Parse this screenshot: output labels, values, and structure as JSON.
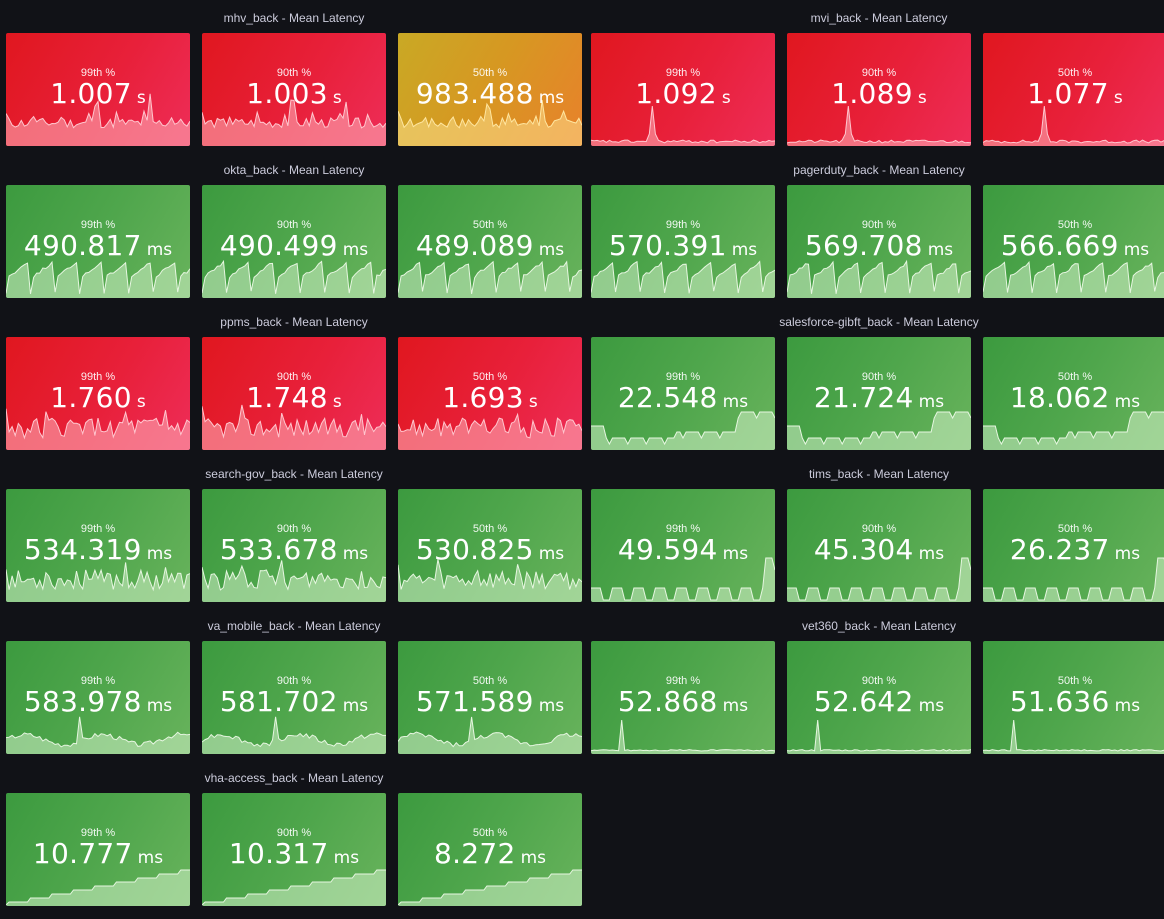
{
  "colors": {
    "background": "#111217",
    "title": "#ccccdc",
    "red": "#e02f44",
    "yellow": "#d79722",
    "green": "#56a64b"
  },
  "groups": [
    {
      "title": "mhv_back - Mean Latency",
      "panels": [
        {
          "label": "99th %",
          "value": "1.007",
          "unit": "s",
          "color": "red",
          "spark": "spiky"
        },
        {
          "label": "90th %",
          "value": "1.003",
          "unit": "s",
          "color": "red",
          "spark": "spiky"
        },
        {
          "label": "50th %",
          "value": "983.488",
          "unit": "ms",
          "color": "yellow",
          "spark": "spiky"
        }
      ]
    },
    {
      "title": "mvi_back - Mean Latency",
      "panels": [
        {
          "label": "99th %",
          "value": "1.092",
          "unit": "s",
          "color": "red",
          "spark": "single"
        },
        {
          "label": "90th %",
          "value": "1.089",
          "unit": "s",
          "color": "red",
          "spark": "single"
        },
        {
          "label": "50th %",
          "value": "1.077",
          "unit": "s",
          "color": "red",
          "spark": "single"
        }
      ]
    },
    {
      "title": "okta_back - Mean Latency",
      "panels": [
        {
          "label": "99th %",
          "value": "490.817",
          "unit": "ms",
          "color": "green",
          "spark": "sawtooth"
        },
        {
          "label": "90th %",
          "value": "490.499",
          "unit": "ms",
          "color": "green",
          "spark": "sawtooth"
        },
        {
          "label": "50th %",
          "value": "489.089",
          "unit": "ms",
          "color": "green",
          "spark": "sawtooth"
        }
      ]
    },
    {
      "title": "pagerduty_back - Mean Latency",
      "panels": [
        {
          "label": "99th %",
          "value": "570.391",
          "unit": "ms",
          "color": "green",
          "spark": "sawtooth"
        },
        {
          "label": "90th %",
          "value": "569.708",
          "unit": "ms",
          "color": "green",
          "spark": "sawtooth"
        },
        {
          "label": "50th %",
          "value": "566.669",
          "unit": "ms",
          "color": "green",
          "spark": "sawtooth"
        }
      ]
    },
    {
      "title": "ppms_back - Mean Latency",
      "panels": [
        {
          "label": "99th %",
          "value": "1.760",
          "unit": "s",
          "color": "red",
          "spark": "noisy"
        },
        {
          "label": "90th %",
          "value": "1.748",
          "unit": "s",
          "color": "red",
          "spark": "noisy"
        },
        {
          "label": "50th %",
          "value": "1.693",
          "unit": "s",
          "color": "red",
          "spark": "noisy"
        }
      ]
    },
    {
      "title": "salesforce-gibft_back - Mean Latency",
      "panels": [
        {
          "label": "99th %",
          "value": "22.548",
          "unit": "ms",
          "color": "green",
          "spark": "steps"
        },
        {
          "label": "90th %",
          "value": "21.724",
          "unit": "ms",
          "color": "green",
          "spark": "steps"
        },
        {
          "label": "50th %",
          "value": "18.062",
          "unit": "ms",
          "color": "green",
          "spark": "steps"
        }
      ]
    },
    {
      "title": "search-gov_back - Mean Latency",
      "panels": [
        {
          "label": "99th %",
          "value": "534.319",
          "unit": "ms",
          "color": "green",
          "spark": "noisy"
        },
        {
          "label": "90th %",
          "value": "533.678",
          "unit": "ms",
          "color": "green",
          "spark": "noisy"
        },
        {
          "label": "50th %",
          "value": "530.825",
          "unit": "ms",
          "color": "green",
          "spark": "noisy"
        }
      ]
    },
    {
      "title": "tims_back - Mean Latency",
      "panels": [
        {
          "label": "99th %",
          "value": "49.594",
          "unit": "ms",
          "color": "green",
          "spark": "blocks"
        },
        {
          "label": "90th %",
          "value": "45.304",
          "unit": "ms",
          "color": "green",
          "spark": "blocks"
        },
        {
          "label": "50th %",
          "value": "26.237",
          "unit": "ms",
          "color": "green",
          "spark": "blocks"
        }
      ]
    },
    {
      "title": "va_mobile_back - Mean Latency",
      "panels": [
        {
          "label": "99th %",
          "value": "583.978",
          "unit": "ms",
          "color": "green",
          "spark": "wavy"
        },
        {
          "label": "90th %",
          "value": "581.702",
          "unit": "ms",
          "color": "green",
          "spark": "wavy"
        },
        {
          "label": "50th %",
          "value": "571.589",
          "unit": "ms",
          "color": "green",
          "spark": "wavy"
        }
      ]
    },
    {
      "title": "vet360_back - Mean Latency",
      "panels": [
        {
          "label": "99th %",
          "value": "52.868",
          "unit": "ms",
          "color": "green",
          "spark": "spike"
        },
        {
          "label": "90th %",
          "value": "52.642",
          "unit": "ms",
          "color": "green",
          "spark": "spike"
        },
        {
          "label": "50th %",
          "value": "51.636",
          "unit": "ms",
          "color": "green",
          "spark": "spike"
        }
      ]
    },
    {
      "title": "vha-access_back - Mean Latency",
      "panels": [
        {
          "label": "99th %",
          "value": "10.777",
          "unit": "ms",
          "color": "green",
          "spark": "stairs"
        },
        {
          "label": "90th %",
          "value": "10.317",
          "unit": "ms",
          "color": "green",
          "spark": "stairs"
        },
        {
          "label": "50th %",
          "value": "8.272",
          "unit": "ms",
          "color": "green",
          "spark": "stairs"
        }
      ]
    }
  ]
}
